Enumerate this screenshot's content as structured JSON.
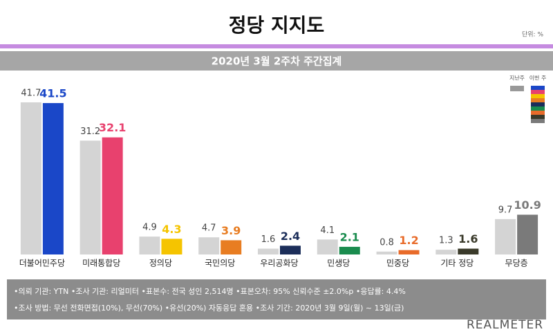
{
  "chart_data": {
    "type": "bar",
    "title": "정당 지지도",
    "unit": "단위: %",
    "subtitle": "2020년 3월 2주차 주간집계",
    "categories": [
      "더불어민주당",
      "미래통합당",
      "정의당",
      "국민의당",
      "우리공화당",
      "민생당",
      "민중당",
      "기타 정당",
      "무당층"
    ],
    "series": [
      {
        "name": "지난주",
        "color": "#d4d4d4",
        "values": [
          41.7,
          31.2,
          4.9,
          4.7,
          1.6,
          4.1,
          0.8,
          1.3,
          9.7
        ]
      },
      {
        "name": "이번 주",
        "colors": [
          "#1a47c8",
          "#e8416e",
          "#f5c400",
          "#e87d22",
          "#1c2e5a",
          "#1a8c4e",
          "#e86b2a",
          "#3a3a2a",
          "#7a7a7a"
        ],
        "values": [
          41.5,
          32.1,
          4.3,
          3.9,
          2.4,
          2.1,
          1.2,
          1.6,
          10.9
        ]
      }
    ],
    "notes": [
      "•의뢰 기관: YTN •조사 기관: 리얼미터 •표본수: 전국 성인 2,514명 •표본오차: 95% 신뢰수준 ±2.0%p •응답률: 4.4%",
      "•조사 방법: 무선 전화면접(10%), 무선(70%) •유선(20%) 자동응답 혼용 •조사 기간: 2020년 3월 9일(월) ~ 13일(금)"
    ],
    "brand": "REALMETER"
  }
}
